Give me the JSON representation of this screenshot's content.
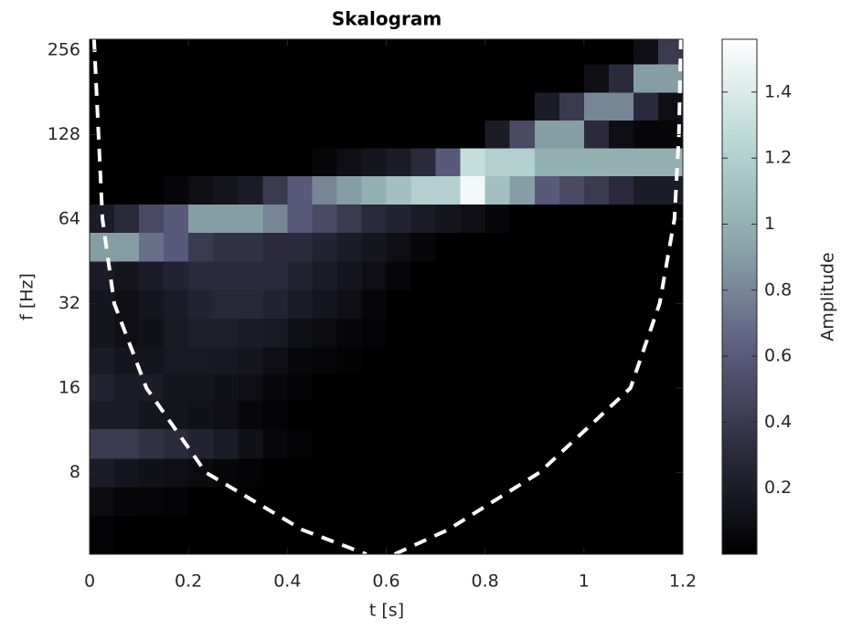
{
  "chart_data": {
    "type": "heatmap",
    "title": "Skalogram",
    "x_label": "t [s]",
    "y_label": "f [Hz]",
    "xlim": [
      0,
      1.2
    ],
    "xticks": [
      0,
      0.2,
      0.4,
      0.6,
      0.8,
      1,
      1.2
    ],
    "ylim": [
      4.09,
      280
    ],
    "yticks": [
      8,
      16,
      32,
      64,
      128,
      256
    ],
    "y_scale": "log",
    "grid": false,
    "x": [
      0.025,
      0.075,
      0.125,
      0.175,
      0.225,
      0.275,
      0.325,
      0.375,
      0.425,
      0.475,
      0.525,
      0.575,
      0.625,
      0.675,
      0.725,
      0.775,
      0.825,
      0.875,
      0.925,
      0.975,
      1.025,
      1.075,
      1.125,
      1.175
    ],
    "y": [
      256,
      203,
      161,
      128,
      102,
      81,
      64,
      51,
      40,
      32,
      25,
      20,
      16,
      13,
      10,
      8,
      6.3,
      5.0
    ],
    "values": [
      [
        0,
        0,
        0,
        0,
        0,
        0,
        0,
        0,
        0,
        0,
        0,
        0,
        0,
        0,
        0,
        0,
        0,
        0,
        0,
        0,
        0,
        0,
        0.1,
        0.4
      ],
      [
        0,
        0,
        0,
        0,
        0,
        0,
        0,
        0,
        0,
        0,
        0,
        0,
        0,
        0,
        0,
        0,
        0,
        0,
        0,
        0,
        0.1,
        0.3,
        0.9,
        0.9
      ],
      [
        0,
        0,
        0,
        0,
        0,
        0,
        0,
        0,
        0,
        0,
        0,
        0,
        0,
        0,
        0,
        0,
        0,
        0,
        0.2,
        0.4,
        0.8,
        0.8,
        0.3,
        0.1
      ],
      [
        0,
        0,
        0,
        0,
        0,
        0,
        0,
        0,
        0,
        0,
        0,
        0,
        0,
        0,
        0,
        0,
        0.2,
        0.5,
        0.9,
        0.9,
        0.3,
        0.1,
        0.05,
        0.05
      ],
      [
        0,
        0,
        0,
        0,
        0,
        0,
        0,
        0,
        0,
        0.05,
        0.1,
        0.15,
        0.2,
        0.3,
        0.6,
        1.3,
        1.2,
        1.2,
        1.0,
        1.0,
        1.0,
        1.0,
        1.0,
        1.0
      ],
      [
        0,
        0,
        0,
        0.05,
        0.1,
        0.15,
        0.2,
        0.4,
        0.6,
        0.8,
        0.9,
        1.0,
        1.1,
        1.2,
        1.2,
        1.5,
        1.1,
        0.9,
        0.6,
        0.5,
        0.4,
        0.3,
        0.2,
        0.2
      ],
      [
        0.2,
        0.3,
        0.5,
        0.6,
        0.9,
        0.9,
        0.9,
        0.8,
        0.6,
        0.5,
        0.4,
        0.3,
        0.25,
        0.2,
        0.15,
        0.1,
        0.05,
        0,
        0,
        0,
        0,
        0,
        0,
        0
      ],
      [
        0.9,
        0.9,
        0.7,
        0.6,
        0.4,
        0.35,
        0.35,
        0.3,
        0.3,
        0.25,
        0.2,
        0.15,
        0.1,
        0.05,
        0,
        0,
        0,
        0,
        0,
        0,
        0,
        0,
        0,
        0
      ],
      [
        0.2,
        0.15,
        0.2,
        0.25,
        0.3,
        0.3,
        0.3,
        0.3,
        0.25,
        0.2,
        0.15,
        0.1,
        0.05,
        0,
        0,
        0,
        0,
        0,
        0,
        0,
        0,
        0,
        0,
        0
      ],
      [
        0.15,
        0.1,
        0.15,
        0.2,
        0.25,
        0.28,
        0.28,
        0.25,
        0.2,
        0.15,
        0.1,
        0.05,
        0,
        0,
        0,
        0,
        0,
        0,
        0,
        0,
        0,
        0,
        0,
        0
      ],
      [
        0.15,
        0.1,
        0.12,
        0.18,
        0.22,
        0.22,
        0.2,
        0.18,
        0.12,
        0.08,
        0.05,
        0.03,
        0,
        0,
        0,
        0,
        0,
        0,
        0,
        0,
        0,
        0,
        0,
        0
      ],
      [
        0.2,
        0.15,
        0.15,
        0.18,
        0.18,
        0.17,
        0.15,
        0.1,
        0.06,
        0.04,
        0.02,
        0,
        0,
        0,
        0,
        0,
        0,
        0,
        0,
        0,
        0,
        0,
        0,
        0
      ],
      [
        0.25,
        0.2,
        0.2,
        0.15,
        0.15,
        0.12,
        0.1,
        0.06,
        0.03,
        0,
        0,
        0,
        0,
        0,
        0,
        0,
        0,
        0,
        0,
        0,
        0,
        0,
        0,
        0
      ],
      [
        0.2,
        0.2,
        0.15,
        0.15,
        0.12,
        0.1,
        0.06,
        0.03,
        0,
        0,
        0,
        0,
        0,
        0,
        0,
        0,
        0,
        0,
        0,
        0,
        0,
        0,
        0,
        0
      ],
      [
        0.4,
        0.4,
        0.35,
        0.3,
        0.25,
        0.2,
        0.12,
        0.06,
        0.03,
        0,
        0,
        0,
        0,
        0,
        0,
        0,
        0,
        0,
        0,
        0,
        0,
        0,
        0,
        0
      ],
      [
        0.2,
        0.15,
        0.12,
        0.1,
        0.08,
        0.05,
        0.03,
        0,
        0,
        0,
        0,
        0,
        0,
        0,
        0,
        0,
        0,
        0,
        0,
        0,
        0,
        0,
        0,
        0
      ],
      [
        0.08,
        0.05,
        0.04,
        0.03,
        0,
        0,
        0,
        0,
        0,
        0,
        0,
        0,
        0,
        0,
        0,
        0,
        0,
        0,
        0,
        0,
        0,
        0,
        0,
        0
      ],
      [
        0.03,
        0,
        0,
        0,
        0,
        0,
        0,
        0,
        0,
        0,
        0,
        0,
        0,
        0,
        0,
        0,
        0,
        0,
        0,
        0,
        0,
        0,
        0,
        0
      ]
    ],
    "colormap": [
      "#000000",
      "#2c2c3e",
      "#5d5d7e",
      "#8aa6ab",
      "#b8d8d4",
      "#ffffff"
    ],
    "colorbar": {
      "label": "Amplitude",
      "lim": [
        0,
        1.56
      ],
      "ticks": [
        0.2,
        0.4,
        0.6,
        0.8,
        1,
        1.2,
        1.4
      ]
    },
    "coi": {
      "color": "#ffffff",
      "x": [
        0.009,
        0.026,
        0.05,
        0.115,
        0.235,
        0.43,
        0.56,
        null,
        0.617,
        0.725,
        0.91,
        1.094,
        1.153,
        1.183,
        1.192,
        1.196
      ],
      "y": [
        280,
        64,
        32,
        16,
        8,
        5,
        4.09,
        null,
        4.09,
        5,
        8,
        16,
        32,
        64,
        128,
        280
      ]
    }
  }
}
